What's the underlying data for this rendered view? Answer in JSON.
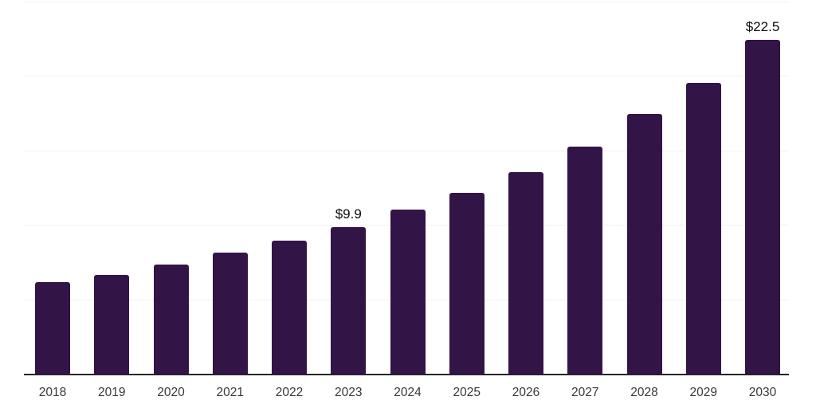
{
  "chart_data": {
    "type": "bar",
    "title": "",
    "xlabel": "",
    "ylabel": "",
    "categories": [
      "2018",
      "2019",
      "2020",
      "2021",
      "2022",
      "2023",
      "2024",
      "2025",
      "2026",
      "2027",
      "2028",
      "2029",
      "2030"
    ],
    "values": [
      6.2,
      6.7,
      7.4,
      8.2,
      9.0,
      9.9,
      11.1,
      12.2,
      13.6,
      15.3,
      17.5,
      19.6,
      22.5
    ],
    "data_labels": [
      "",
      "",
      "",
      "",
      "",
      "$9.9",
      "",
      "",
      "",
      "",
      "",
      "",
      "$22.5"
    ],
    "ylim": [
      0,
      25
    ],
    "gridline_step": 5,
    "grid": "horizontal-only",
    "legend_position": "none",
    "y_axis_labels_visible": false,
    "colors": {
      "bar": "#331447",
      "background": "#ffffff",
      "gridline": "#f2f2f2",
      "axis_line": "#262626",
      "x_tick_label": "#383838",
      "data_label": "#0d0d0d"
    }
  }
}
